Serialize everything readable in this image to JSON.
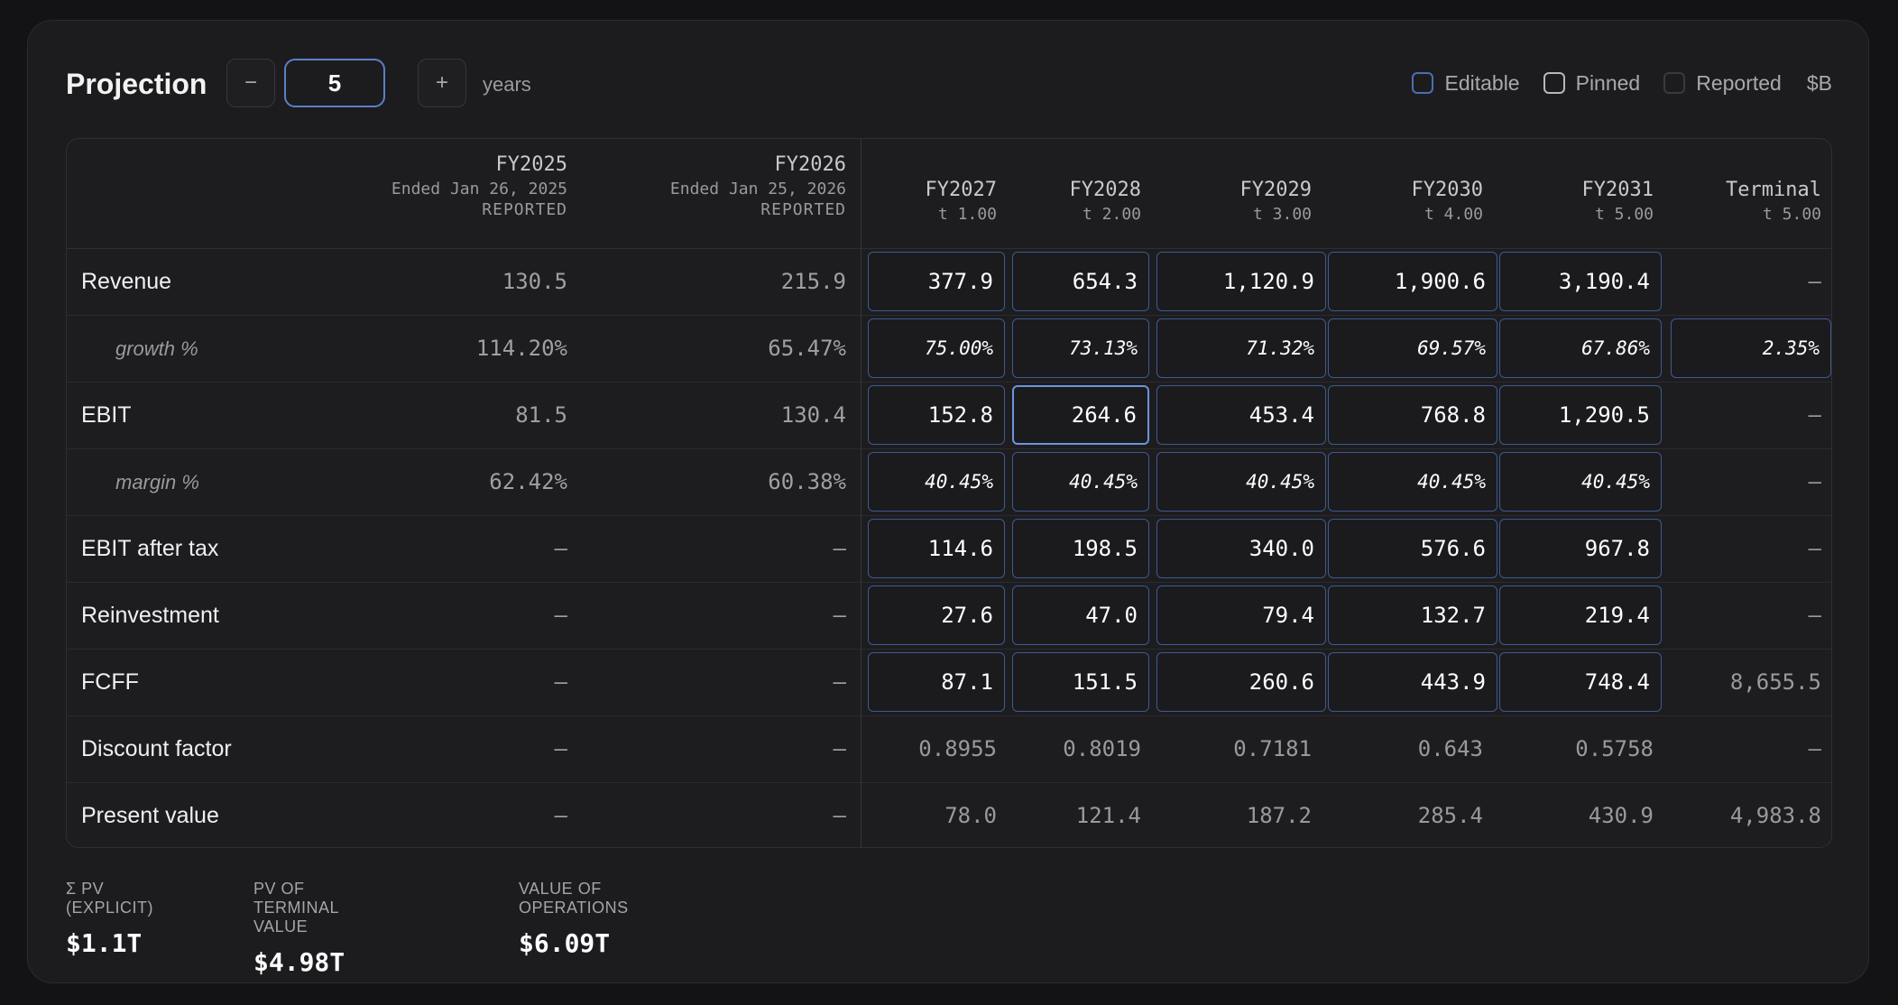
{
  "header": {
    "title": "Projection",
    "minus_label": "−",
    "plus_label": "+",
    "years_value": "5",
    "years_unit": "years",
    "toggles": {
      "editable": "Editable",
      "pinned": "Pinned",
      "reported": "Reported"
    },
    "currency": "$B"
  },
  "columns": {
    "historical": [
      {
        "year": "FY2025",
        "sub": "Ended Jan 26, 2025",
        "tag": "REPORTED"
      },
      {
        "year": "FY2026",
        "sub": "Ended Jan 25, 2026",
        "tag": "REPORTED"
      }
    ],
    "projected": [
      {
        "year": "FY2027",
        "t": "t 1.00"
      },
      {
        "year": "FY2028",
        "t": "t 2.00"
      },
      {
        "year": "FY2029",
        "t": "t 3.00"
      },
      {
        "year": "FY2030",
        "t": "t 4.00"
      },
      {
        "year": "FY2031",
        "t": "t 5.00"
      },
      {
        "year": "Terminal",
        "t": "t 5.00"
      }
    ]
  },
  "rows": [
    {
      "label": "Revenue",
      "hist": [
        "130.5",
        "215.9"
      ],
      "proj": [
        "377.9",
        "654.3",
        "1,120.9",
        "1,900.6",
        "3,190.4"
      ],
      "terminal": "–"
    },
    {
      "label": "growth %",
      "hist": [
        "114.20%",
        "65.47%"
      ],
      "proj": [
        "75.00%",
        "73.13%",
        "71.32%",
        "69.57%",
        "67.86%"
      ],
      "terminal": "2.35%"
    },
    {
      "label": "EBIT",
      "hist": [
        "81.5",
        "130.4"
      ],
      "proj": [
        "152.8",
        "264.6",
        "453.4",
        "768.8",
        "1,290.5"
      ],
      "terminal": "–"
    },
    {
      "label": "margin %",
      "hist": [
        "62.42%",
        "60.38%"
      ],
      "proj": [
        "40.45%",
        "40.45%",
        "40.45%",
        "40.45%",
        "40.45%"
      ],
      "terminal": "–"
    },
    {
      "label": "EBIT after tax",
      "hist": [
        "–",
        "–"
      ],
      "proj": [
        "114.6",
        "198.5",
        "340.0",
        "576.6",
        "967.8"
      ],
      "terminal": "–"
    },
    {
      "label": "Reinvestment",
      "hist": [
        "–",
        "–"
      ],
      "proj": [
        "27.6",
        "47.0",
        "79.4",
        "132.7",
        "219.4"
      ],
      "terminal": "–"
    },
    {
      "label": "FCFF",
      "hist": [
        "–",
        "–"
      ],
      "proj": [
        "87.1",
        "151.5",
        "260.6",
        "443.9",
        "748.4"
      ],
      "terminal": "8,655.5"
    },
    {
      "label": "Discount factor",
      "hist": [
        "–",
        "–"
      ],
      "proj": [
        "0.8955",
        "0.8019",
        "0.7181",
        "0.643",
        "0.5758"
      ],
      "terminal": "–"
    },
    {
      "label": "Present value",
      "hist": [
        "–",
        "–"
      ],
      "proj": [
        "78.0",
        "121.4",
        "187.2",
        "285.4",
        "430.9"
      ],
      "terminal": "4,983.8"
    }
  ],
  "summary": [
    {
      "label": "Σ PV (EXPLICIT)",
      "value": "$1.1T"
    },
    {
      "label": "PV OF TERMINAL VALUE",
      "value": "$4.98T"
    },
    {
      "label": "VALUE OF OPERATIONS",
      "value": "$6.09T"
    }
  ]
}
